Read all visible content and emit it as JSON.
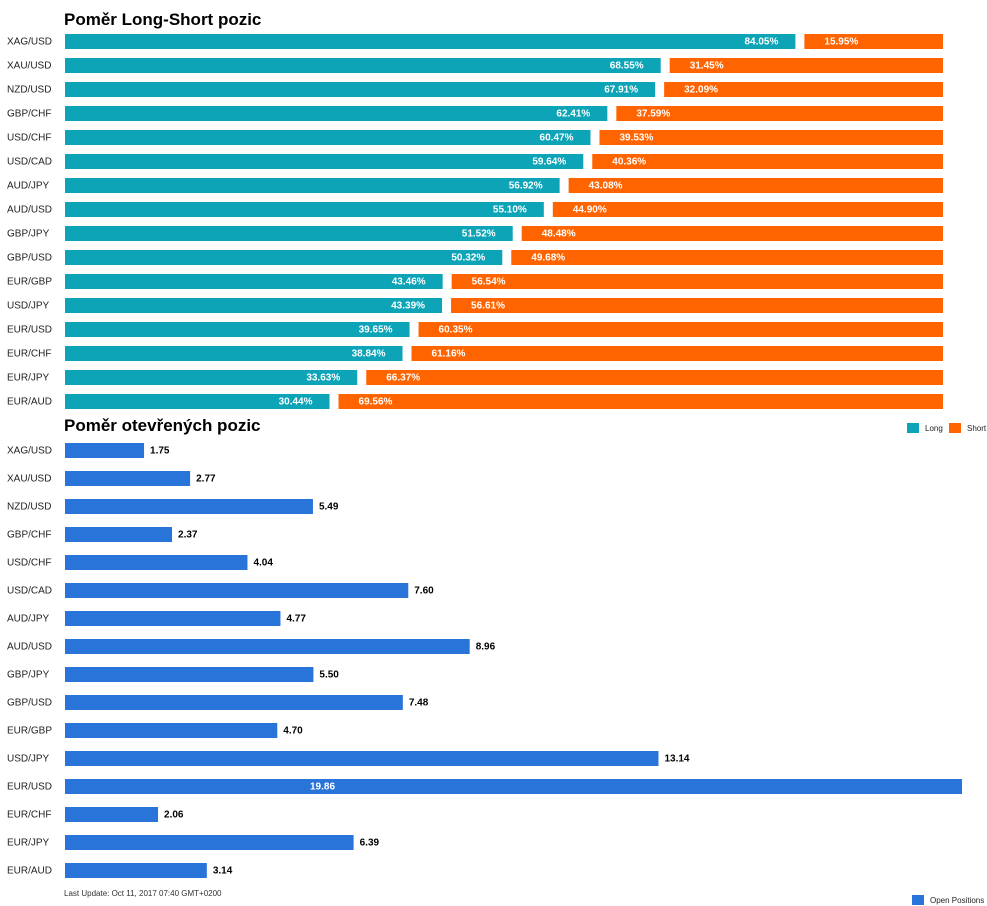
{
  "colors": {
    "long": "#0da4b8",
    "short": "#ff6400",
    "open": "#2874d8"
  },
  "chart_data": [
    {
      "type": "bar",
      "orientation": "horizontal",
      "stacked": true,
      "percent": true,
      "title": "Poměr Long-Short pozic",
      "categories": [
        "XAG/USD",
        "XAU/USD",
        "NZD/USD",
        "GBP/CHF",
        "USD/CHF",
        "USD/CAD",
        "AUD/JPY",
        "AUD/USD",
        "GBP/JPY",
        "GBP/USD",
        "EUR/GBP",
        "USD/JPY",
        "EUR/USD",
        "EUR/CHF",
        "EUR/JPY",
        "EUR/AUD"
      ],
      "series": [
        {
          "name": "Long",
          "values": [
            84.05,
            68.55,
            67.91,
            62.41,
            60.47,
            59.64,
            56.92,
            55.1,
            51.52,
            50.32,
            43.46,
            43.39,
            39.65,
            38.84,
            33.63,
            30.44
          ],
          "labels": [
            "84.05%",
            "68.55%",
            "67.91%",
            "62.41%",
            "60.47%",
            "59.64%",
            "56.92%",
            "55.10%",
            "51.52%",
            "50.32%",
            "43.46%",
            "43.39%",
            "39.65%",
            "38.84%",
            "33.63%",
            "30.44%"
          ]
        },
        {
          "name": "Short",
          "values": [
            15.95,
            31.45,
            32.09,
            37.59,
            39.53,
            40.36,
            43.08,
            44.9,
            48.48,
            49.68,
            56.54,
            56.61,
            60.35,
            61.16,
            66.37,
            69.56
          ],
          "labels": [
            "15.95%",
            "31.45%",
            "32.09%",
            "37.59%",
            "39.53%",
            "40.36%",
            "43.08%",
            "44.90%",
            "48.48%",
            "49.68%",
            "56.54%",
            "56.61%",
            "60.35%",
            "61.16%",
            "66.37%",
            "69.56%"
          ]
        }
      ],
      "legend": "top-right"
    },
    {
      "type": "bar",
      "orientation": "horizontal",
      "title": "Poměr otevřených pozic",
      "categories": [
        "XAG/USD",
        "XAU/USD",
        "NZD/USD",
        "GBP/CHF",
        "USD/CHF",
        "USD/CAD",
        "AUD/JPY",
        "AUD/USD",
        "GBP/JPY",
        "GBP/USD",
        "EUR/GBP",
        "USD/JPY",
        "EUR/USD",
        "EUR/CHF",
        "EUR/JPY",
        "EUR/AUD"
      ],
      "series": [
        {
          "name": "Open Positions",
          "values": [
            1.75,
            2.77,
            5.49,
            2.37,
            4.04,
            7.6,
            4.77,
            8.96,
            5.5,
            7.48,
            4.7,
            13.14,
            19.86,
            2.06,
            6.39,
            3.14
          ],
          "labels": [
            "1.75",
            "2.77",
            "5.49",
            "2.37",
            "4.04",
            "7.60",
            "4.77",
            "8.96",
            "5.50",
            "7.48",
            "4.70",
            "13.14",
            "19.86",
            "2.06",
            "6.39",
            "3.14"
          ]
        }
      ],
      "legend": "bottom-right"
    }
  ],
  "footer": {
    "last_update": "Last Update: Oct 11, 2017 07:40 GMT+0200"
  }
}
